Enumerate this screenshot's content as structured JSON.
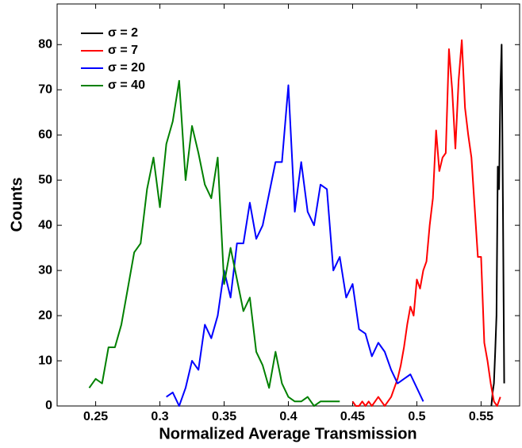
{
  "chart_data": {
    "type": "line",
    "xlabel": "Normalized Average Transmission",
    "ylabel": "Counts",
    "xlim": [
      0.22,
      0.58
    ],
    "ylim": [
      0,
      89
    ],
    "xticks": [
      0.25,
      0.3,
      0.35,
      0.4,
      0.45,
      0.5,
      0.55
    ],
    "yticks": [
      0,
      10,
      20,
      30,
      40,
      50,
      60,
      70,
      80
    ],
    "legend": "upper left",
    "series": [
      {
        "name": "σ = 2",
        "color": "#000000",
        "x": [
          0.558,
          0.559,
          0.56,
          0.561,
          0.562,
          0.563,
          0.564,
          0.565,
          0.566,
          0.567,
          0.568
        ],
        "values": [
          0,
          3,
          5,
          12,
          20,
          53,
          48,
          70,
          80,
          45,
          5
        ]
      },
      {
        "name": "σ = 7",
        "color": "#ff0000",
        "x": [
          0.45,
          0.4525,
          0.455,
          0.4575,
          0.46,
          0.4625,
          0.465,
          0.4675,
          0.47,
          0.4725,
          0.475,
          0.4775,
          0.48,
          0.4825,
          0.485,
          0.4875,
          0.49,
          0.4925,
          0.495,
          0.4975,
          0.5,
          0.5025,
          0.505,
          0.5075,
          0.51,
          0.5125,
          0.515,
          0.5175,
          0.52,
          0.5225,
          0.525,
          0.5275,
          0.53,
          0.5325,
          0.535,
          0.5375,
          0.54,
          0.5425,
          0.545,
          0.5475,
          0.55,
          0.5525,
          0.555,
          0.5575,
          0.56,
          0.5625,
          0.565
        ],
        "values": [
          1,
          0,
          0,
          1,
          0,
          1,
          0,
          1,
          2,
          1,
          0,
          1,
          2,
          4,
          6,
          9,
          13,
          18,
          22,
          20,
          28,
          26,
          30,
          32,
          40,
          46,
          61,
          52,
          55,
          56,
          79,
          70,
          57,
          72,
          81,
          66,
          60,
          55,
          44,
          33,
          33,
          14,
          10,
          5,
          1,
          0,
          2
        ]
      },
      {
        "name": "σ = 20",
        "color": "#0000ff",
        "x": [
          0.305,
          0.31,
          0.315,
          0.32,
          0.325,
          0.33,
          0.335,
          0.34,
          0.345,
          0.35,
          0.355,
          0.36,
          0.365,
          0.37,
          0.375,
          0.38,
          0.385,
          0.39,
          0.395,
          0.4,
          0.405,
          0.41,
          0.415,
          0.42,
          0.425,
          0.43,
          0.435,
          0.44,
          0.445,
          0.45,
          0.455,
          0.46,
          0.465,
          0.47,
          0.475,
          0.48,
          0.485,
          0.49,
          0.495,
          0.5,
          0.505
        ],
        "values": [
          2,
          3,
          0,
          4,
          10,
          8,
          18,
          15,
          20,
          30,
          24,
          36,
          36,
          45,
          37,
          40,
          47,
          54,
          54,
          71,
          43,
          54,
          43,
          40,
          49,
          48,
          30,
          33,
          24,
          27,
          17,
          16,
          11,
          14,
          12,
          8,
          5,
          6,
          7,
          4,
          1
        ]
      },
      {
        "name": "σ = 40",
        "color": "#008000",
        "x": [
          0.245,
          0.25,
          0.255,
          0.26,
          0.265,
          0.27,
          0.275,
          0.28,
          0.285,
          0.29,
          0.295,
          0.3,
          0.305,
          0.31,
          0.315,
          0.32,
          0.325,
          0.33,
          0.335,
          0.34,
          0.345,
          0.35,
          0.355,
          0.36,
          0.365,
          0.37,
          0.375,
          0.38,
          0.385,
          0.39,
          0.395,
          0.4,
          0.405,
          0.41,
          0.415,
          0.42,
          0.425,
          0.43,
          0.435,
          0.44
        ],
        "values": [
          4,
          6,
          5,
          13,
          13,
          18,
          26,
          34,
          36,
          48,
          55,
          44,
          58,
          63,
          72,
          50,
          62,
          56,
          49,
          46,
          55,
          27,
          35,
          28,
          21,
          24,
          12,
          9,
          4,
          12,
          5,
          2,
          1,
          1,
          2,
          0,
          1,
          1,
          1,
          1
        ]
      }
    ]
  }
}
